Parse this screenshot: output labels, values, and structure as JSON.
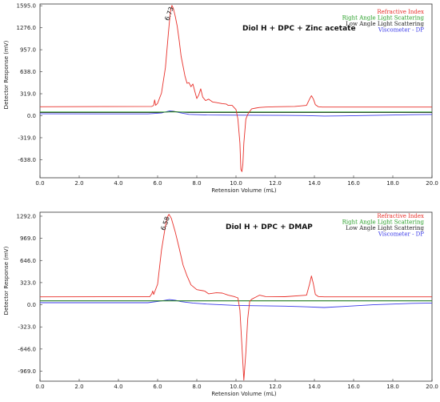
{
  "chart_data": [
    {
      "type": "line",
      "title": "Diol H + DPC + Zinc acetate",
      "xlabel": "Retension Volume  (mL)",
      "ylabel": "Detector Response  (mV)",
      "xlim": [
        0.0,
        20.0
      ],
      "ylim": [
        -900,
        1620
      ],
      "x_ticks": [
        "0.0",
        "2.0",
        "4.0",
        "6.0",
        "8.0",
        "10.0",
        "12.0",
        "14.0",
        "16.0",
        "18.0",
        "20.0"
      ],
      "y_ticks": [
        "1595.0",
        "1276.0",
        "957.0",
        "638.0",
        "319.0",
        "0.0",
        "-319.0",
        "-638.0"
      ],
      "peak_label": "6.73",
      "legend_position": "top-right",
      "series": [
        {
          "name": "Refractive Index",
          "color": "#e8302a",
          "x": [
            0,
            5.7,
            5.8,
            5.85,
            5.9,
            6.0,
            6.2,
            6.4,
            6.55,
            6.65,
            6.73,
            6.8,
            6.9,
            7.0,
            7.1,
            7.2,
            7.3,
            7.4,
            7.5,
            7.6,
            7.7,
            7.8,
            7.9,
            8.0,
            8.1,
            8.2,
            8.3,
            8.45,
            8.6,
            8.8,
            9.0,
            9.3,
            9.5,
            9.6,
            9.8,
            10.0,
            10.1,
            10.2,
            10.25,
            10.3,
            10.35,
            10.4,
            10.5,
            10.6,
            10.7,
            10.8,
            11.0,
            11.2,
            11.5,
            12.0,
            13.0,
            13.6,
            13.75,
            13.85,
            13.95,
            14.05,
            14.2,
            14.4,
            15,
            17,
            20
          ],
          "y": [
            130,
            135,
            150,
            230,
            150,
            180,
            330,
            700,
            1200,
            1500,
            1600,
            1560,
            1440,
            1300,
            1100,
            860,
            720,
            570,
            470,
            480,
            420,
            460,
            350,
            250,
            300,
            390,
            270,
            220,
            240,
            200,
            190,
            175,
            170,
            150,
            150,
            90,
            -50,
            -400,
            -780,
            -810,
            -700,
            -400,
            -50,
            20,
            60,
            100,
            110,
            120,
            125,
            130,
            135,
            150,
            240,
            290,
            240,
            160,
            130,
            125,
            125,
            125,
            125
          ]
        },
        {
          "name": "Right Angle Light Scattering",
          "color": "#2aa02a",
          "x": [
            0,
            20
          ],
          "y": [
            55,
            55
          ]
        },
        {
          "name": "Low Angle Light Scattering",
          "color": "#222222",
          "x": [
            0,
            6.0,
            6.5,
            6.8,
            7.1,
            7.6,
            20
          ],
          "y": [
            45,
            45,
            55,
            62,
            55,
            45,
            45
          ]
        },
        {
          "name": "Viscometer - DP",
          "color": "#3a3ae8",
          "x": [
            0,
            5.5,
            6.2,
            6.6,
            6.8,
            7.1,
            7.6,
            8.5,
            10.0,
            12.5,
            13.5,
            14.5,
            15.5,
            17,
            19,
            20
          ],
          "y": [
            28,
            27,
            40,
            70,
            65,
            45,
            20,
            10,
            8,
            5,
            2,
            -5,
            -2,
            5,
            15,
            18
          ]
        }
      ]
    },
    {
      "type": "line",
      "title": "Diol H + DPC + DMAP",
      "xlabel": "Retension Volume  (mL)",
      "ylabel": "Detector Response  (mV)",
      "xlim": [
        0.0,
        20.0
      ],
      "ylim": [
        -1115,
        1350
      ],
      "x_ticks": [
        "0.0",
        "2.0",
        "4.0",
        "6.0",
        "8.0",
        "10.0",
        "12.0",
        "14.0",
        "16.0",
        "18.0",
        "20.0"
      ],
      "y_ticks": [
        "1292.0",
        "969.0",
        "646.0",
        "323.0",
        "0.0",
        "-323.0",
        "-646.0",
        "-969.0"
      ],
      "peak_label": "6.58",
      "legend_position": "top-right",
      "series": [
        {
          "name": "Refractive Index",
          "color": "#e8302a",
          "x": [
            0,
            5.6,
            5.7,
            5.75,
            5.8,
            6.0,
            6.2,
            6.4,
            6.5,
            6.58,
            6.7,
            6.9,
            7.1,
            7.3,
            7.5,
            7.7,
            8.0,
            8.4,
            8.6,
            9.0,
            9.3,
            9.6,
            9.9,
            10.1,
            10.2,
            10.3,
            10.4,
            10.5,
            10.6,
            10.7,
            10.8,
            11.0,
            11.2,
            11.5,
            12.5,
            13.6,
            13.75,
            13.85,
            13.95,
            14.05,
            14.2,
            14.5,
            17,
            20
          ],
          "y": [
            115,
            118,
            160,
            200,
            150,
            300,
            800,
            1150,
            1280,
            1320,
            1260,
            1060,
            830,
            580,
            420,
            290,
            220,
            200,
            160,
            175,
            170,
            140,
            120,
            100,
            -80,
            -600,
            -1100,
            -700,
            -200,
            50,
            80,
            110,
            140,
            120,
            118,
            140,
            300,
            420,
            300,
            150,
            120,
            115,
            115,
            115
          ]
        },
        {
          "name": "Right Angle Light Scattering",
          "color": "#2aa02a",
          "x": [
            0,
            20
          ],
          "y": [
            55,
            55
          ]
        },
        {
          "name": "Low Angle Light Scattering",
          "color": "#222222",
          "x": [
            0,
            20
          ],
          "y": [
            58,
            58
          ]
        },
        {
          "name": "Viscometer - DP",
          "color": "#3a3ae8",
          "x": [
            0,
            5.5,
            6.2,
            6.6,
            6.9,
            7.2,
            7.8,
            8.5,
            10.0,
            12.5,
            13.5,
            14.5,
            15.5,
            17,
            19,
            20
          ],
          "y": [
            30,
            30,
            55,
            75,
            65,
            45,
            25,
            10,
            -10,
            -20,
            -30,
            -40,
            -25,
            0,
            20,
            25
          ]
        }
      ]
    }
  ]
}
